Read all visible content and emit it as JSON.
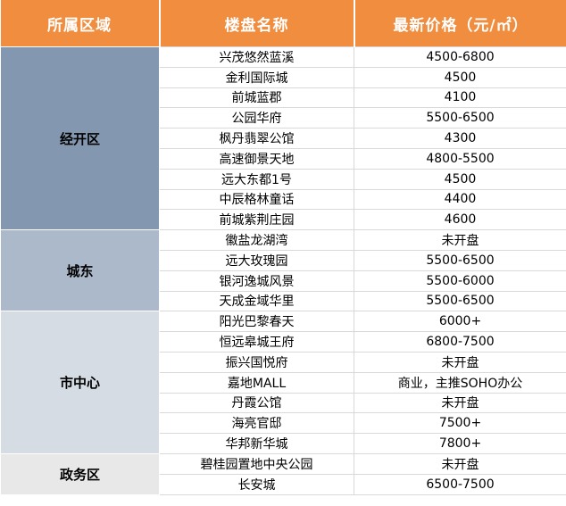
{
  "table": {
    "headers": [
      "所属区域",
      "楼盘名称",
      "最新价格（元/㎡）"
    ],
    "groups": [
      {
        "district": "经开区",
        "color": "#8497b0",
        "rows": [
          {
            "name": "兴茂悠然蓝溪",
            "price": "4500-6800"
          },
          {
            "name": "金利国际城",
            "price": "4500"
          },
          {
            "name": "前城蓝郡",
            "price": "4100"
          },
          {
            "name": "公园华府",
            "price": "5500-6500"
          },
          {
            "name": "枫丹翡翠公馆",
            "price": "4300"
          },
          {
            "name": "高速御景天地",
            "price": "4800-5500"
          },
          {
            "name": "远大东都1号",
            "price": "4500"
          },
          {
            "name": "中辰格林童话",
            "price": "4400"
          },
          {
            "name": "前城紫荆庄园",
            "price": "4600"
          }
        ]
      },
      {
        "district": "城东",
        "color": "#acb9ca",
        "rows": [
          {
            "name": "徽盐龙湖湾",
            "price": "未开盘"
          },
          {
            "name": "远大玫瑰园",
            "price": "5500-6500"
          },
          {
            "name": "银河逸城风景",
            "price": "5500-6000"
          },
          {
            "name": "天成金域华里",
            "price": "5500-6500"
          }
        ]
      },
      {
        "district": "市中心",
        "color": "#d6dce4",
        "rows": [
          {
            "name": "阳光巴黎春天",
            "price": "6000+"
          },
          {
            "name": "恒远皋城王府",
            "price": "6800-7500"
          },
          {
            "name": "振兴国悦府",
            "price": "未开盘"
          },
          {
            "name": "嘉地MALL",
            "price": "商业，主推SOHO办公"
          },
          {
            "name": "丹霞公馆",
            "price": "未开盘"
          },
          {
            "name": "海亮官邸",
            "price": "7500+"
          },
          {
            "name": "华邦新华城",
            "price": "7800+"
          }
        ]
      },
      {
        "district": "政务区",
        "color": "#e8e8e8",
        "rows": [
          {
            "name": "碧桂园置地中央公园",
            "price": "未开盘"
          },
          {
            "name": "长安城",
            "price": "6500-7500"
          }
        ]
      }
    ]
  }
}
